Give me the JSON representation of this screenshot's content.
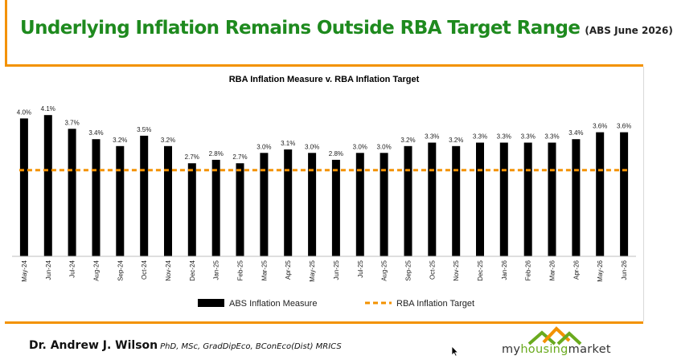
{
  "slide": {
    "title": "Underlying Inflation Remains Outside RBA Target Range",
    "subtitle": "(ABS June 2026)"
  },
  "footer": {
    "author": "Dr. Andrew J. Wilson",
    "credentials": "PhD, MSc, GradDipEco, BConEco(Dist) MRICS"
  },
  "logo": {
    "part1": "my",
    "part2": "housing",
    "part3": "market",
    "icon": "house-roofs-icon"
  },
  "chart_data": {
    "type": "bar",
    "title": "RBA Inflation Measure v. RBA Inflation Target",
    "categories": [
      "May-24",
      "Jun-24",
      "Jul-24",
      "Aug-24",
      "Sep-24",
      "Oct-24",
      "Nov-24",
      "Dec-24",
      "Jan-25",
      "Feb-25",
      "Mar-25",
      "Apr-25",
      "May-25",
      "Jun-25",
      "Jul-25",
      "Aug-25",
      "Sep-25",
      "Oct-25",
      "Nov-25",
      "Dec-25",
      "Jan-26",
      "Feb-26",
      "Mar-26",
      "Apr-26",
      "May-26",
      "Jun-26"
    ],
    "series": [
      {
        "name": "ABS Inflation Measure",
        "kind": "bar",
        "color": "#000000",
        "values": [
          4.0,
          4.1,
          3.7,
          3.4,
          3.2,
          3.5,
          3.2,
          2.7,
          2.8,
          2.7,
          3.0,
          3.1,
          3.0,
          2.8,
          3.0,
          3.0,
          3.2,
          3.3,
          3.2,
          3.3,
          3.3,
          3.3,
          3.3,
          3.4,
          3.6,
          3.6
        ],
        "labels": [
          "4.0%",
          "4.1%",
          "3.7%",
          "3.4%",
          "3.2%",
          "3.5%",
          "3.2%",
          "2.7%",
          "2.8%",
          "2.7%",
          "3.0%",
          "3.1%",
          "3.0%",
          "2.8%",
          "3.0%",
          "3.0%",
          "3.2%",
          "3.3%",
          "3.2%",
          "3.3%",
          "3.3%",
          "3.3%",
          "3.3%",
          "3.4%",
          "3.6%",
          "3.6%"
        ]
      },
      {
        "name": "RBA Inflation Target",
        "kind": "line",
        "style": "dashed",
        "color": "#f39200",
        "value": 2.5
      }
    ],
    "ylim": [
      0,
      4.5
    ],
    "grid": false,
    "legend_position": "bottom"
  }
}
